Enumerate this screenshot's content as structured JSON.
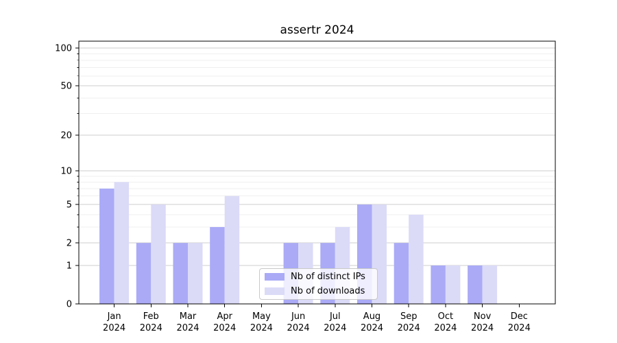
{
  "chart_data": {
    "type": "bar",
    "title": "assertr 2024",
    "categories": [
      "Jan",
      "Feb",
      "Mar",
      "Apr",
      "May",
      "Jun",
      "Jul",
      "Aug",
      "Sep",
      "Oct",
      "Nov",
      "Dec"
    ],
    "category_year": "2024",
    "series": [
      {
        "name": "Nb of distinct IPs",
        "color": "#aaaaf7",
        "values": [
          7,
          2,
          2,
          3,
          0,
          2,
          2,
          5,
          2,
          1,
          1,
          0
        ]
      },
      {
        "name": "Nb of downloads",
        "color": "#dbdbf8",
        "values": [
          8,
          5,
          2,
          6,
          0,
          2,
          3,
          5,
          4,
          1,
          1,
          0
        ]
      }
    ],
    "y_axis": {
      "scale": "log1p",
      "major_ticks": [
        0,
        1,
        2,
        5,
        10,
        20,
        50,
        100
      ],
      "minor_ticks": [
        3,
        4,
        6,
        7,
        8,
        9,
        30,
        40,
        60,
        70,
        80,
        90
      ],
      "ylim": [
        0,
        113
      ]
    },
    "grid": true,
    "legend_position": "bottom-center"
  },
  "colors": {
    "background": "#ffffff",
    "bar_distinct_ips": "#aaaaf7",
    "bar_downloads": "#dbdbf8",
    "grid_major": "#cdcdcd",
    "grid_minor": "#efefef",
    "axis": "#000000",
    "text": "#000000",
    "legend_border": "#c8c8c8"
  }
}
